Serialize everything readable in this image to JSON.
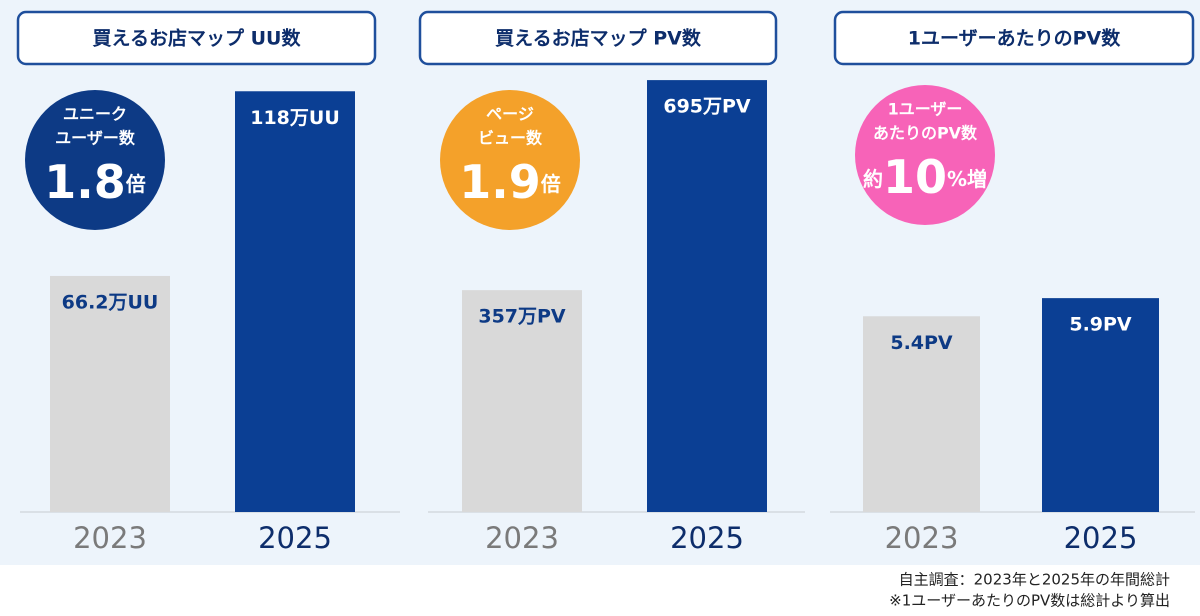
{
  "chart_data": [
    {
      "type": "bar",
      "title": "買えるお店マップ UU数",
      "categories": [
        "2023",
        "2025"
      ],
      "values": [
        66.2,
        118
      ],
      "value_labels": [
        "66.2万UU",
        "118万UU"
      ],
      "colors": [
        "#d9d9d9",
        "#0b3f94"
      ],
      "ylim": [
        0,
        122
      ],
      "badge": {
        "lines": [
          "ユニーク",
          "ユーザー数"
        ],
        "value": 1.8,
        "unit": "倍",
        "color": "#0d3a85"
      }
    },
    {
      "type": "bar",
      "title": "買えるお店マップ PV数",
      "categories": [
        "2023",
        "2025"
      ],
      "values": [
        357,
        695
      ],
      "value_labels": [
        "357万PV",
        "695万PV"
      ],
      "colors": [
        "#d9d9d9",
        "#0b3f94"
      ],
      "ylim": [
        0,
        700
      ],
      "badge": {
        "lines": [
          "ページ",
          "ビュー数"
        ],
        "value": 1.9,
        "unit": "倍",
        "color": "#f4a12a"
      }
    },
    {
      "type": "bar",
      "title": "1ユーザーあたりのPV数",
      "categories": [
        "2023",
        "2025"
      ],
      "values": [
        5.4,
        5.9
      ],
      "value_labels": [
        "5.4PV",
        "5.9PV"
      ],
      "colors": [
        "#d9d9d9",
        "#0b3f94"
      ],
      "ylim": [
        0,
        12
      ],
      "badge": {
        "lines": [
          "1ユーザー",
          "あたりのPV数"
        ],
        "prefix": "約",
        "value": 10,
        "unit": "%増",
        "color": "#f763b8"
      }
    }
  ],
  "footnotes": [
    "自主調査：2023年と2025年の年間総計",
    "※1ユーザーあたりのPV数は総計より算出"
  ]
}
